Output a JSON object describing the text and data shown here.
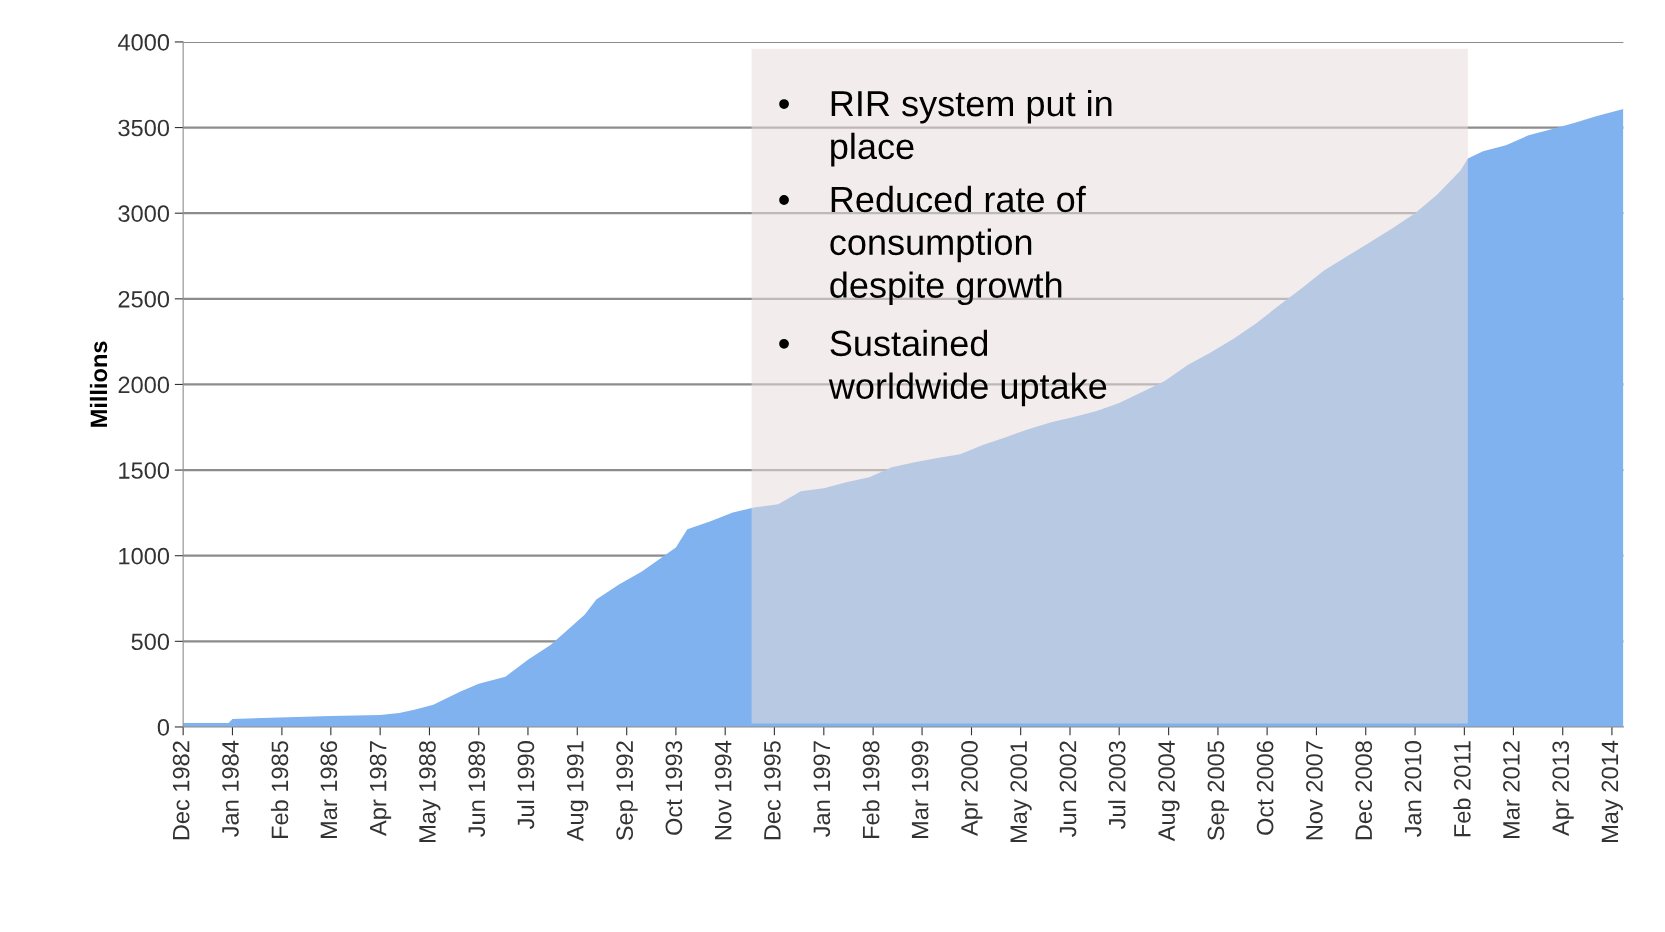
{
  "chart_data": {
    "type": "area",
    "ylabel": "Millions",
    "x": [
      "1982-12",
      "1983-12",
      "1984-01",
      "1986-03",
      "1987-04",
      "1987-09",
      "1988-01",
      "1988-06",
      "1989-01",
      "1989-06",
      "1990-01",
      "1990-07",
      "1991-01",
      "1991-07",
      "1991-10",
      "1992-01",
      "1992-07",
      "1993-01",
      "1993-10",
      "1994-01",
      "1994-07",
      "1995-01",
      "1995-07",
      "1996-01",
      "1996-07",
      "1997-01",
      "1997-07",
      "1998-01",
      "1998-07",
      "1999-01",
      "1999-07",
      "2000-01",
      "2000-07",
      "2001-01",
      "2001-07",
      "2002-01",
      "2002-07",
      "2003-01",
      "2003-07",
      "2004-01",
      "2004-07",
      "2005-01",
      "2005-07",
      "2006-01",
      "2006-07",
      "2007-01",
      "2007-07",
      "2008-01",
      "2008-07",
      "2009-01",
      "2009-07",
      "2010-01",
      "2010-07",
      "2011-01",
      "2011-03",
      "2011-07",
      "2012-01",
      "2012-07",
      "2013-01",
      "2013-07",
      "2014-01",
      "2014-08"
    ],
    "series": [
      {
        "color": "#7fb2ee",
        "values": [
          23,
          23,
          47,
          64,
          70,
          82,
          100,
          129,
          205,
          252,
          293,
          392,
          480,
          597,
          656,
          744,
          832,
          908,
          1048,
          1154,
          1200,
          1253,
          1283,
          1300,
          1376,
          1394,
          1429,
          1458,
          1517,
          1546,
          1570,
          1593,
          1646,
          1692,
          1739,
          1780,
          1810,
          1845,
          1892,
          1956,
          2020,
          2114,
          2185,
          2266,
          2354,
          2460,
          2559,
          2665,
          2747,
          2829,
          2911,
          2999,
          3110,
          3250,
          3320,
          3361,
          3397,
          3455,
          3490,
          3526,
          3567,
          3608
        ]
      }
    ],
    "xlim": [
      "1982-12",
      "2014-08"
    ],
    "xticks": [
      {
        "value": "1982-12",
        "label": "Dec 1982"
      },
      {
        "value": "1984-01",
        "label": "Jan 1984"
      },
      {
        "value": "1985-02",
        "label": "Feb 1985"
      },
      {
        "value": "1986-03",
        "label": "Mar 1986"
      },
      {
        "value": "1987-04",
        "label": "Apr 1987"
      },
      {
        "value": "1988-05",
        "label": "May 1988"
      },
      {
        "value": "1989-06",
        "label": "Jun 1989"
      },
      {
        "value": "1990-07",
        "label": "Jul 1990"
      },
      {
        "value": "1991-08",
        "label": "Aug 1991"
      },
      {
        "value": "1992-09",
        "label": "Sep 1992"
      },
      {
        "value": "1993-10",
        "label": "Oct 1993"
      },
      {
        "value": "1994-11",
        "label": "Nov 1994"
      },
      {
        "value": "1995-12",
        "label": "Dec 1995"
      },
      {
        "value": "1997-01",
        "label": "Jan 1997"
      },
      {
        "value": "1998-02",
        "label": "Feb 1998"
      },
      {
        "value": "1999-03",
        "label": "Mar 1999"
      },
      {
        "value": "2000-04",
        "label": "Apr 2000"
      },
      {
        "value": "2001-05",
        "label": "May 2001"
      },
      {
        "value": "2002-06",
        "label": "Jun 2002"
      },
      {
        "value": "2003-07",
        "label": "Jul 2003"
      },
      {
        "value": "2004-08",
        "label": "Aug 2004"
      },
      {
        "value": "2005-09",
        "label": "Sep 2005"
      },
      {
        "value": "2006-10",
        "label": "Oct 2006"
      },
      {
        "value": "2007-11",
        "label": "Nov 2007"
      },
      {
        "value": "2008-12",
        "label": "Dec 2008"
      },
      {
        "value": "2010-01",
        "label": "Jan 2010"
      },
      {
        "value": "2011-02",
        "label": "Feb 2011"
      },
      {
        "value": "2012-03",
        "label": "Mar 2012"
      },
      {
        "value": "2013-04",
        "label": "Apr 2013"
      },
      {
        "value": "2014-05",
        "label": "May 2014"
      }
    ],
    "ylim": [
      0,
      4000
    ],
    "yticks": [
      0,
      500,
      1000,
      1500,
      2000,
      2500,
      3000,
      3500,
      4000
    ],
    "grid": "y",
    "bands": [
      {
        "axis": "x",
        "from": "1995-06",
        "to": "2011-03",
        "color": "#e8dcdc"
      }
    ],
    "annotations": [
      "• RIR system put in place",
      "• Reduced rate of consumption despite growth",
      "• Sustained worldwide uptake"
    ]
  }
}
